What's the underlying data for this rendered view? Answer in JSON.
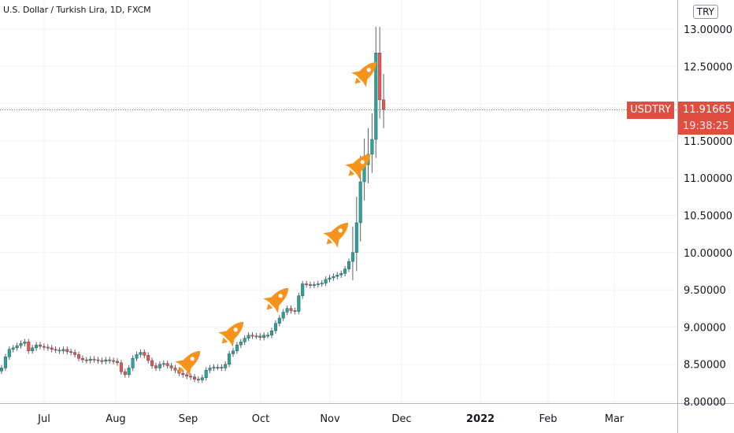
{
  "header": {
    "title": "U.S. Dollar / Turkish Lira, 1D, FXCM",
    "currency": "TRY"
  },
  "last_price": {
    "symbol": "USDTRY",
    "price": "11.91665",
    "countdown": "19:38:25",
    "value": 11.91665
  },
  "colors": {
    "up": "#26a69a",
    "down": "#ef5350",
    "price_line": "#e04e42",
    "rocket": "#f7931a",
    "grid": "#f0f3fa",
    "axis_text": "#131722"
  },
  "icons": [
    "rocket-icon",
    "rocket-icon",
    "rocket-icon",
    "rocket-icon",
    "rocket-icon",
    "rocket-icon"
  ],
  "chart_data": {
    "type": "candlestick",
    "title": "U.S. Dollar / Turkish Lira, 1D, FXCM",
    "ylim": [
      8.0,
      13.3
    ],
    "y_ticks": [
      "8.00000",
      "8.50000",
      "9.00000",
      "9.50000",
      "10.00000",
      "10.50000",
      "11.00000",
      "11.50000",
      "12.50000",
      "13.00000"
    ],
    "x_ticks": [
      "Jul",
      "Aug",
      "Sep",
      "Oct",
      "Nov",
      "Dec",
      "2022",
      "Feb",
      "Mar"
    ],
    "grid": true,
    "series": [
      {
        "name": "USDTRY",
        "close": [
          8.45,
          8.6,
          8.7,
          8.72,
          8.75,
          8.78,
          8.8,
          8.68,
          8.72,
          8.76,
          8.74,
          8.73,
          8.72,
          8.7,
          8.69,
          8.68,
          8.7,
          8.67,
          8.66,
          8.63,
          8.58,
          8.56,
          8.55,
          8.57,
          8.56,
          8.55,
          8.54,
          8.56,
          8.55,
          8.54,
          8.52,
          8.4,
          8.36,
          8.45,
          8.58,
          8.63,
          8.66,
          8.62,
          8.55,
          8.48,
          8.45,
          8.5,
          8.51,
          8.48,
          8.45,
          8.42,
          8.38,
          8.36,
          8.34,
          8.33,
          8.3,
          8.29,
          8.32,
          8.42,
          8.45,
          8.46,
          8.46,
          8.45,
          8.5,
          8.64,
          8.68,
          8.76,
          8.8,
          8.85,
          8.89,
          8.88,
          8.88,
          8.86,
          8.89,
          8.89,
          8.95,
          9.05,
          9.12,
          9.2,
          9.25,
          9.22,
          9.21,
          9.42,
          9.58,
          9.57,
          9.56,
          9.57,
          9.58,
          9.59,
          9.64,
          9.66,
          9.68,
          9.7,
          9.72,
          9.78,
          9.88,
          10.0,
          10.4,
          10.95,
          11.18,
          11.32,
          11.52,
          12.68,
          12.05,
          11.92
        ]
      }
    ],
    "last": 11.91665
  }
}
